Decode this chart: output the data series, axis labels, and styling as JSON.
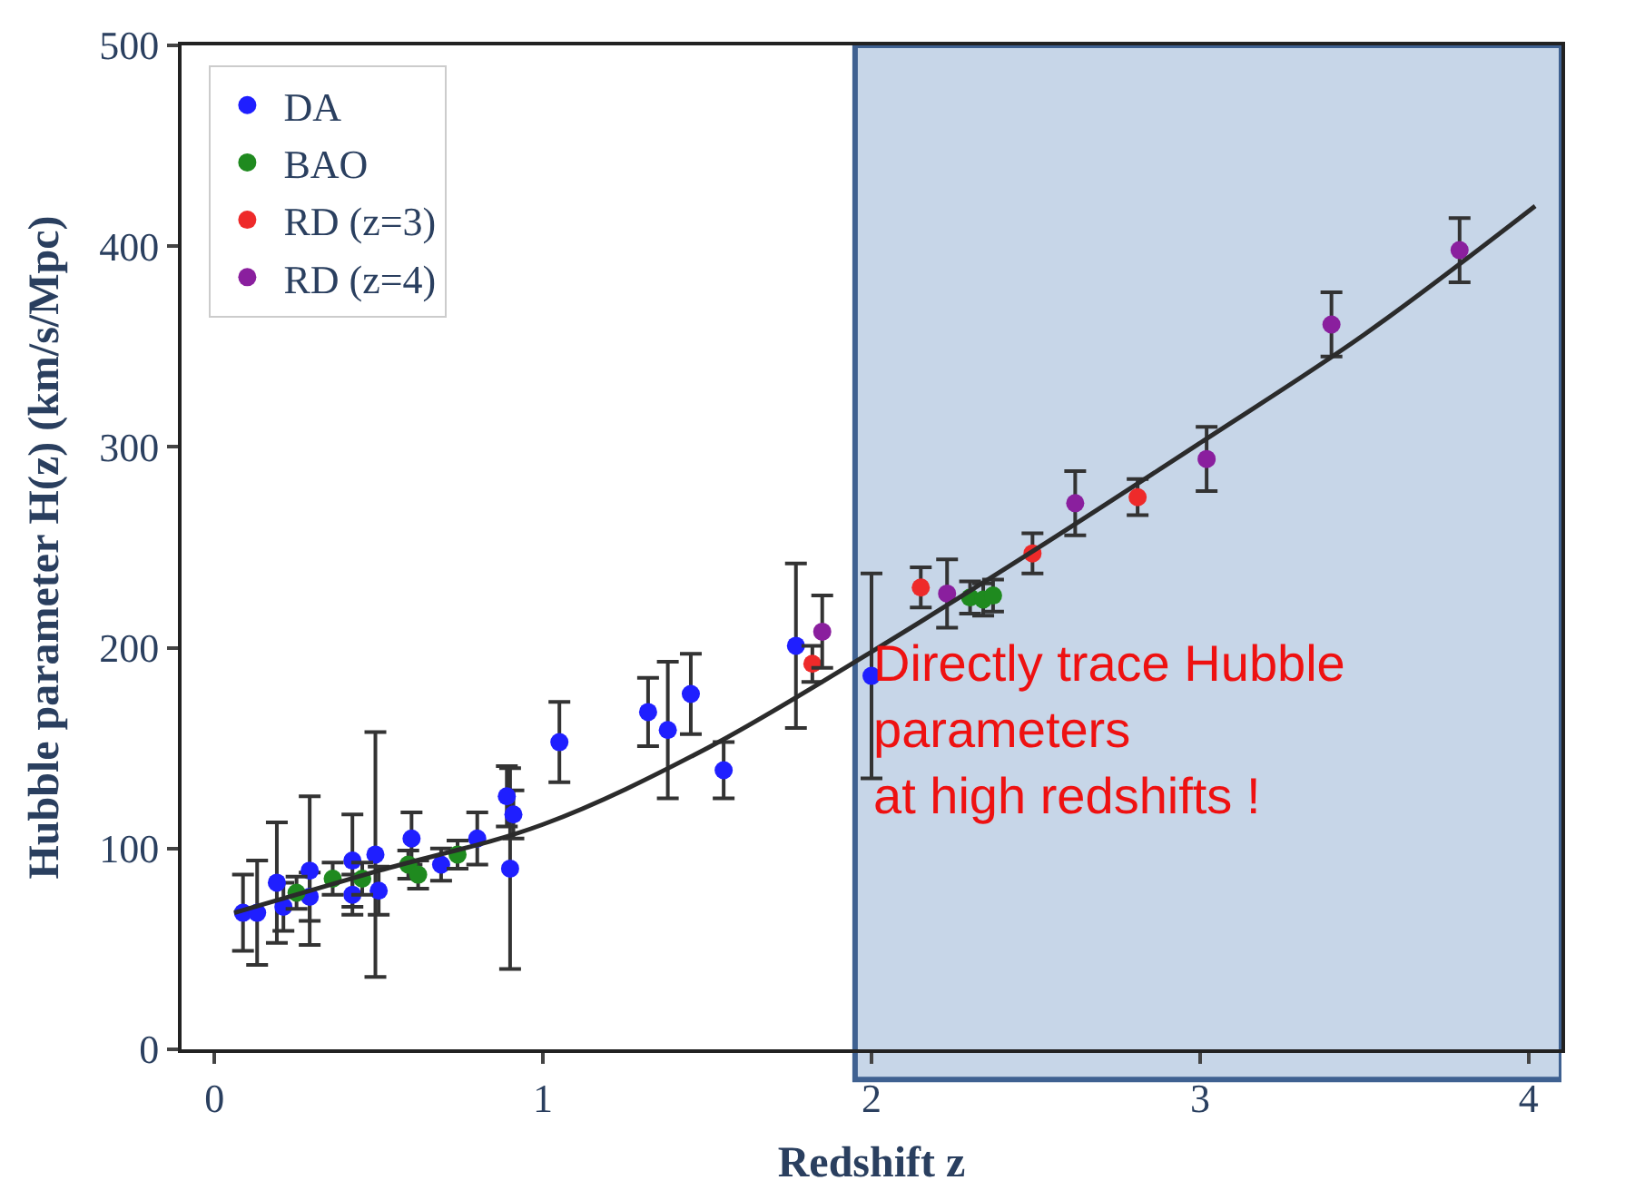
{
  "chart_data": {
    "type": "scatter",
    "xlabel": "Redshift z",
    "ylabel": "Hubble parameter H(z) (km/s/Mpc)",
    "xlim": [
      -0.1,
      4.1
    ],
    "ylim": [
      0,
      500
    ],
    "xticks": [
      0,
      1,
      2,
      3,
      4
    ],
    "yticks": [
      0,
      100,
      200,
      300,
      400,
      500
    ],
    "legend": "top left",
    "marker": "circle",
    "grid": false,
    "series": [
      {
        "name": "DA",
        "color": "#1f1fff",
        "x": [
          0.087,
          0.13,
          0.19,
          0.21,
          0.29,
          0.29,
          0.42,
          0.42,
          0.49,
          0.5,
          0.6,
          0.69,
          0.8,
          0.89,
          0.91,
          0.9,
          1.05,
          1.32,
          1.38,
          1.45,
          1.55,
          1.77,
          2.0
        ],
        "values": [
          68,
          68,
          83,
          71,
          89,
          76,
          94,
          77,
          97,
          79,
          105,
          92,
          105,
          126,
          117,
          90,
          153,
          168,
          159,
          177,
          139,
          201,
          186
        ],
        "errors": [
          19,
          26,
          30,
          12,
          37,
          12,
          23,
          10,
          61,
          12,
          13,
          8,
          13,
          15,
          12,
          50,
          20,
          17,
          34,
          20,
          14,
          41,
          51
        ]
      },
      {
        "name": "BAO",
        "color": "#1f8a1f",
        "x": [
          0.25,
          0.36,
          0.45,
          0.59,
          0.62,
          0.74,
          2.3,
          2.34,
          2.37
        ],
        "values": [
          78,
          85,
          85,
          92,
          87,
          97,
          225,
          224,
          226
        ],
        "errors": [
          8,
          8,
          8,
          7,
          7,
          7,
          8,
          8,
          8
        ]
      },
      {
        "name": "RD (z=3)",
        "color": "#ee2a2a",
        "x": [
          1.82,
          2.15,
          2.49,
          2.81
        ],
        "values": [
          192,
          230,
          247,
          275
        ],
        "errors": [
          9,
          10,
          10,
          9
        ]
      },
      {
        "name": "RD (z=4)",
        "color": "#8a1f9e",
        "x": [
          1.85,
          2.23,
          2.62,
          3.02,
          3.4,
          3.79
        ],
        "values": [
          208,
          227,
          272,
          294,
          361,
          398
        ],
        "errors": [
          18,
          17,
          16,
          16,
          16,
          16
        ]
      },
      {
        "type": "line",
        "marker": "none",
        "color": "#2b2b2b",
        "x": [
          0.06,
          0.5,
          1,
          1.5,
          2,
          2.5,
          3,
          3.5,
          4.02
        ],
        "values": [
          68,
          89,
          112,
          150,
          198,
          249,
          302,
          356,
          420
        ]
      }
    ],
    "bands": [
      {
        "axis": "x",
        "from": 1.95,
        "to": 4.1,
        "label": "Directly trace Hubble\nparameters\nat high redshifts !",
        "color": "#c7d6e8"
      }
    ]
  }
}
